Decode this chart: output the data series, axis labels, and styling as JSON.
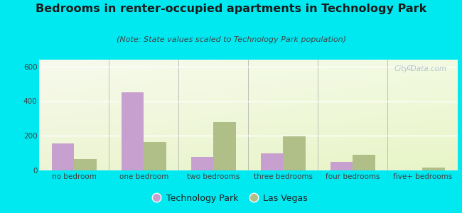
{
  "title": "Bedrooms in renter-occupied apartments in Technology Park",
  "subtitle": "(Note: State values scaled to Technology Park population)",
  "categories": [
    "no bedroom",
    "one bedroom",
    "two bedrooms",
    "three bedrooms",
    "four bedrooms",
    "five+ bedrooms"
  ],
  "tech_park": [
    155,
    450,
    80,
    100,
    50,
    0
  ],
  "las_vegas": [
    65,
    165,
    280,
    195,
    90,
    18
  ],
  "tech_park_color": "#c8a0d0",
  "las_vegas_color": "#b0bf88",
  "bar_width": 0.32,
  "ylim": [
    0,
    640
  ],
  "yticks": [
    0,
    200,
    400,
    600
  ],
  "outer_bg": "#00e8f0",
  "title_fontsize": 11.5,
  "subtitle_fontsize": 8,
  "tick_fontsize": 7.5,
  "legend_fontsize": 9,
  "watermark_text": "City-Data.com"
}
